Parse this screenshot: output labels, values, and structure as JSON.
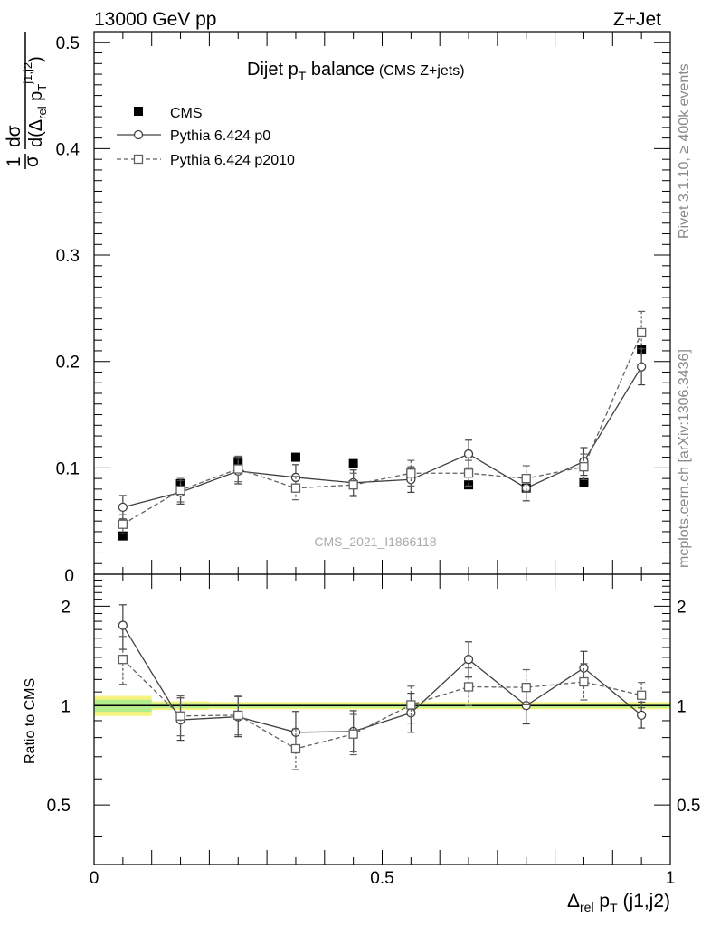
{
  "header": {
    "left": "13000 GeV pp",
    "right": "Z+Jet"
  },
  "side_labels": {
    "rivet": "Rivet 3.1.10, ≥ 400k events",
    "mcplots": "mcplots.cern.ch [arXiv:1306.3436]"
  },
  "chart_data": [
    {
      "type": "scatter",
      "title_main": "Dijet p",
      "title_sub": "T",
      "title_rest": " balance",
      "title_note": "(CMS Z+jets)",
      "analysis_id": "CMS_2021_I1866118",
      "ylabel": "1/σ dσ/d(Δrel pT^(j1,j2))",
      "xlim": [
        0,
        1
      ],
      "ylim": [
        0,
        0.51
      ],
      "yticks": [
        0.1,
        0.2,
        0.3,
        0.4,
        0.5
      ],
      "ytick_labels": [
        "0.1",
        "0.2",
        "0.3",
        "0.4",
        "0.5"
      ],
      "bottom_tick_label": "0",
      "x": [
        0.05,
        0.15,
        0.25,
        0.35,
        0.45,
        0.55,
        0.65,
        0.75,
        0.85,
        0.95
      ],
      "series": [
        {
          "name": "CMS",
          "marker": "filled-square",
          "color": "#000000",
          "values": [
            0.036,
            0.085,
            0.106,
            0.11,
            0.104,
            0.095,
            0.084,
            0.081,
            0.086,
            0.211
          ],
          "errors": [
            0.002,
            0.003,
            0.004,
            0.004,
            0.004,
            0.003,
            0.003,
            0.003,
            0.003,
            0.006
          ]
        },
        {
          "name": "Pythia 6.424 p0",
          "marker": "open-circle",
          "line": "solid",
          "color": "#404040",
          "values": [
            0.063,
            0.077,
            0.097,
            0.091,
            0.086,
            0.089,
            0.113,
            0.081,
            0.106,
            0.195
          ],
          "errors": [
            0.011,
            0.011,
            0.012,
            0.012,
            0.012,
            0.012,
            0.013,
            0.012,
            0.013,
            0.017
          ]
        },
        {
          "name": "Pythia 6.424 p2010",
          "marker": "open-square",
          "line": "dashed",
          "color": "#606060",
          "values": [
            0.047,
            0.079,
            0.099,
            0.081,
            0.084,
            0.095,
            0.095,
            0.09,
            0.101,
            0.227
          ],
          "errors": [
            0.009,
            0.011,
            0.012,
            0.011,
            0.011,
            0.012,
            0.012,
            0.012,
            0.012,
            0.02
          ]
        }
      ]
    },
    {
      "type": "scatter",
      "ylabel": "Ratio to CMS",
      "xlabel_main": "Δ",
      "xlabel_rel": "rel",
      "xlabel_p": " p",
      "xlabel_T": "T",
      "xlabel_rest": " (j1,j2)",
      "xlim": [
        0,
        1
      ],
      "ylim": [
        0.33,
        2.5
      ],
      "yticks": [
        0.5,
        1,
        2
      ],
      "ytick_labels": [
        "0.5",
        "1",
        "2"
      ],
      "xticks": [
        0,
        0.5,
        1
      ],
      "xtick_labels": [
        "0",
        "0.5",
        "1"
      ],
      "reference": 1,
      "x": [
        0.05,
        0.15,
        0.25,
        0.35,
        0.45,
        0.55,
        0.65,
        0.75,
        0.85,
        0.95
      ],
      "band_halfwidth": [
        0.07,
        0.03,
        0.025,
        0.025,
        0.025,
        0.025,
        0.025,
        0.025,
        0.025,
        0.025
      ],
      "series": [
        {
          "name": "Pythia 6.424 p0",
          "marker": "open-circle",
          "line": "solid",
          "color": "#404040",
          "values": [
            1.75,
            0.905,
            0.925,
            0.83,
            0.835,
            0.95,
            1.38,
            1.0,
            1.3,
            0.935
          ],
          "errors_up": [
            0.27,
            0.15,
            0.14,
            0.13,
            0.13,
            0.14,
            0.18,
            0.14,
            0.16,
            0.09
          ],
          "errors_down": [
            0.27,
            0.12,
            0.12,
            0.11,
            0.11,
            0.12,
            0.16,
            0.12,
            0.14,
            0.08
          ]
        },
        {
          "name": "Pythia 6.424 p2010",
          "marker": "open-square",
          "line": "dashed",
          "color": "#606060",
          "values": [
            1.38,
            0.93,
            0.935,
            0.74,
            0.82,
            1.005,
            1.14,
            1.135,
            1.18,
            1.075
          ],
          "errors_up": [
            0.24,
            0.14,
            0.14,
            0.11,
            0.12,
            0.14,
            0.16,
            0.15,
            0.16,
            0.1
          ],
          "errors_down": [
            0.22,
            0.12,
            0.12,
            0.1,
            0.11,
            0.12,
            0.14,
            0.13,
            0.14,
            0.09
          ]
        }
      ]
    }
  ]
}
